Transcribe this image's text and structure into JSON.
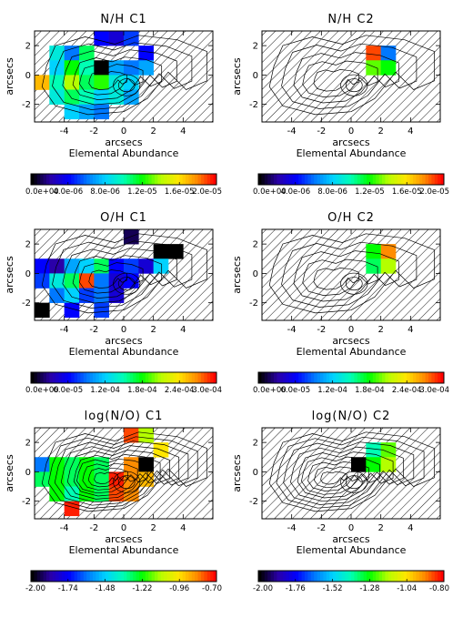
{
  "chart_data": {
    "type": "heatmap",
    "x_range": [
      -6,
      6
    ],
    "y_range": [
      -3.2,
      3.0
    ],
    "x_ticks": [
      -4,
      -2,
      0,
      2,
      4
    ],
    "y_ticks": [
      -2,
      0,
      2
    ],
    "xlabel": "arcsecs",
    "ylabel": "arcsecs",
    "sublabel": "Elemental Abundance",
    "grid": false,
    "colormap": [
      "#000000",
      "#2a00a8",
      "#0000ff",
      "#0078ff",
      "#00d2ff",
      "#00ffb4",
      "#00ff00",
      "#b4ff00",
      "#ffe600",
      "#ff8c00",
      "#ff0000"
    ],
    "no_data_fill": "diagonal hatching",
    "panels": [
      {
        "title": "N/H C1",
        "color_range": [
          0,
          2e-05
        ],
        "colorbar_ticks": [
          "0.0e+00",
          "4.0e-06",
          "8.0e-06",
          "1.2e-05",
          "1.6e-05",
          "2.0e-05"
        ],
        "pixels": [
          {
            "x": -4.5,
            "y": 1.5,
            "v": 0.45
          },
          {
            "x": -3.5,
            "y": 1.5,
            "v": 0.3
          },
          {
            "x": -2.5,
            "y": 1.5,
            "v": 0.55
          },
          {
            "x": -1.5,
            "y": 2.5,
            "v": 0.2
          },
          {
            "x": -0.5,
            "y": 2.5,
            "v": 0.15
          },
          {
            "x": 0.5,
            "y": 2.5,
            "v": 0.25
          },
          {
            "x": 1.5,
            "y": 1.5,
            "v": 0.2
          },
          {
            "x": 1.5,
            "y": 0.5,
            "v": 0.35
          },
          {
            "x": -4.5,
            "y": 0.5,
            "v": 0.4
          },
          {
            "x": -3.5,
            "y": 0.5,
            "v": 0.6
          },
          {
            "x": -2.5,
            "y": 0.5,
            "v": 0.5
          },
          {
            "x": -1.5,
            "y": 0.5,
            "v": 0.0
          },
          {
            "x": -0.5,
            "y": 0.5,
            "v": 0.35
          },
          {
            "x": 0.5,
            "y": 0.5,
            "v": 0.3
          },
          {
            "x": -5.5,
            "y": -0.5,
            "v": 0.85
          },
          {
            "x": -4.5,
            "y": -0.5,
            "v": 0.5
          },
          {
            "x": -3.5,
            "y": -0.5,
            "v": 0.7
          },
          {
            "x": -2.5,
            "y": -0.5,
            "v": 0.55
          },
          {
            "x": -1.5,
            "y": -0.5,
            "v": 0.62
          },
          {
            "x": -0.5,
            "y": -0.5,
            "v": 0.45
          },
          {
            "x": 0.5,
            "y": -0.5,
            "v": 0.4
          },
          {
            "x": -4.5,
            "y": -1.5,
            "v": 0.45
          },
          {
            "x": -3.5,
            "y": -1.5,
            "v": 0.55
          },
          {
            "x": -2.5,
            "y": -1.5,
            "v": 0.5
          },
          {
            "x": -1.5,
            "y": -1.5,
            "v": 0.4
          },
          {
            "x": -0.5,
            "y": -1.5,
            "v": 0.45
          },
          {
            "x": 0.5,
            "y": -1.5,
            "v": 0.35
          },
          {
            "x": -3.5,
            "y": -2.5,
            "v": 0.4
          },
          {
            "x": -2.5,
            "y": -2.5,
            "v": 0.35
          },
          {
            "x": -1.5,
            "y": -2.5,
            "v": 0.3
          }
        ],
        "contours": 6
      },
      {
        "title": "N/H C2",
        "color_range": [
          0,
          2e-05
        ],
        "colorbar_ticks": [
          "0.0e+00",
          "4.0e-06",
          "8.0e-06",
          "1.2e-05",
          "1.6e-05",
          "2.0e-05"
        ],
        "pixels": [
          {
            "x": 1.5,
            "y": 1.5,
            "v": 0.95
          },
          {
            "x": 2.5,
            "y": 1.5,
            "v": 0.3
          },
          {
            "x": 1.5,
            "y": 0.5,
            "v": 0.65
          },
          {
            "x": 2.5,
            "y": 0.5,
            "v": 0.6
          }
        ],
        "contours": 5
      },
      {
        "title": "O/H C1",
        "color_range": [
          0,
          0.0003
        ],
        "colorbar_ticks": [
          "0.0e+00",
          "6.0e-05",
          "1.2e-04",
          "1.8e-04",
          "2.4e-04",
          "3.0e-04"
        ],
        "pixels": [
          {
            "x": 0.5,
            "y": 2.5,
            "v": 0.05
          },
          {
            "x": 2.5,
            "y": 1.5,
            "v": 0.0
          },
          {
            "x": 3.5,
            "y": 1.5,
            "v": 0.0
          },
          {
            "x": -5.5,
            "y": 0.5,
            "v": 0.2
          },
          {
            "x": -4.5,
            "y": 0.5,
            "v": 0.1
          },
          {
            "x": -3.5,
            "y": 0.5,
            "v": 0.35
          },
          {
            "x": -2.5,
            "y": 0.5,
            "v": 0.4
          },
          {
            "x": -1.5,
            "y": 0.5,
            "v": 0.55
          },
          {
            "x": -0.5,
            "y": 0.5,
            "v": 0.2
          },
          {
            "x": 0.5,
            "y": 0.5,
            "v": 0.25
          },
          {
            "x": 1.5,
            "y": 0.5,
            "v": 0.15
          },
          {
            "x": 2.5,
            "y": 0.5,
            "v": 0.4
          },
          {
            "x": -5.5,
            "y": -0.5,
            "v": 0.25
          },
          {
            "x": -4.5,
            "y": -0.5,
            "v": 0.45
          },
          {
            "x": -3.5,
            "y": -0.5,
            "v": 0.55
          },
          {
            "x": -2.5,
            "y": -0.5,
            "v": 0.95
          },
          {
            "x": -1.5,
            "y": -0.5,
            "v": 0.3
          },
          {
            "x": -0.5,
            "y": -0.5,
            "v": 0.15
          },
          {
            "x": 0.5,
            "y": -0.5,
            "v": 0.2
          },
          {
            "x": -4.5,
            "y": -1.5,
            "v": 0.3
          },
          {
            "x": -3.5,
            "y": -1.5,
            "v": 0.4
          },
          {
            "x": -2.5,
            "y": -1.5,
            "v": 0.25
          },
          {
            "x": -1.5,
            "y": -1.5,
            "v": 0.3
          },
          {
            "x": -0.5,
            "y": -1.5,
            "v": 0.15
          },
          {
            "x": -5.5,
            "y": -2.5,
            "v": 0.0
          },
          {
            "x": -3.5,
            "y": -2.5,
            "v": 0.2
          },
          {
            "x": -1.5,
            "y": -2.5,
            "v": 0.25
          }
        ],
        "contours": 6
      },
      {
        "title": "O/H C2",
        "color_range": [
          0,
          0.0003
        ],
        "colorbar_ticks": [
          "0.0e+00",
          "6.0e-05",
          "1.2e-04",
          "1.8e-04",
          "2.4e-04",
          "3.0e-04"
        ],
        "pixels": [
          {
            "x": 1.5,
            "y": 1.5,
            "v": 0.6
          },
          {
            "x": 2.5,
            "y": 1.5,
            "v": 0.9
          },
          {
            "x": 1.5,
            "y": 0.5,
            "v": 0.55
          },
          {
            "x": 2.5,
            "y": 0.5,
            "v": 0.7
          }
        ],
        "contours": 5
      },
      {
        "title": "log(N/O) C1",
        "color_range": [
          -2.0,
          -0.7
        ],
        "colorbar_ticks": [
          "-2.00",
          "-1.74",
          "-1.48",
          "-1.22",
          "-0.96",
          "-0.70"
        ],
        "pixels": [
          {
            "x": 0.5,
            "y": 2.5,
            "v": 0.95
          },
          {
            "x": 1.5,
            "y": 2.5,
            "v": 0.7
          },
          {
            "x": 2.5,
            "y": 1.5,
            "v": 0.8
          },
          {
            "x": -5.5,
            "y": 0.5,
            "v": 0.3
          },
          {
            "x": -4.5,
            "y": 0.5,
            "v": 0.6
          },
          {
            "x": -3.5,
            "y": 0.5,
            "v": 0.55
          },
          {
            "x": -2.5,
            "y": 0.5,
            "v": 0.6
          },
          {
            "x": -1.5,
            "y": 0.5,
            "v": 0.55
          },
          {
            "x": 0.5,
            "y": 0.5,
            "v": 0.9
          },
          {
            "x": 1.5,
            "y": 0.5,
            "v": 0.0
          },
          {
            "x": -5.5,
            "y": -0.5,
            "v": 0.55
          },
          {
            "x": -4.5,
            "y": -0.5,
            "v": 0.6
          },
          {
            "x": -3.5,
            "y": -0.5,
            "v": 0.55
          },
          {
            "x": -2.5,
            "y": -0.5,
            "v": 0.6
          },
          {
            "x": -1.5,
            "y": -0.5,
            "v": 0.55
          },
          {
            "x": -0.5,
            "y": -0.5,
            "v": 0.98
          },
          {
            "x": 0.5,
            "y": -0.5,
            "v": 0.9
          },
          {
            "x": 1.5,
            "y": -0.5,
            "v": 0.85
          },
          {
            "x": -4.5,
            "y": -1.5,
            "v": 0.6
          },
          {
            "x": -3.5,
            "y": -1.5,
            "v": 0.5
          },
          {
            "x": -2.5,
            "y": -1.5,
            "v": 0.6
          },
          {
            "x": -1.5,
            "y": -1.5,
            "v": 0.55
          },
          {
            "x": -0.5,
            "y": -1.5,
            "v": 0.95
          },
          {
            "x": 0.5,
            "y": -1.5,
            "v": 0.9
          },
          {
            "x": -3.5,
            "y": -2.5,
            "v": 0.98
          }
        ],
        "contours": 10
      },
      {
        "title": "log(N/O) C2",
        "color_range": [
          -2.0,
          -0.8
        ],
        "colorbar_ticks": [
          "-2.00",
          "-1.76",
          "-1.52",
          "-1.28",
          "-1.04",
          "-0.80"
        ],
        "pixels": [
          {
            "x": 1.5,
            "y": 1.5,
            "v": 0.5
          },
          {
            "x": 2.5,
            "y": 1.5,
            "v": 0.65
          },
          {
            "x": 0.5,
            "y": 0.5,
            "v": 0.0
          },
          {
            "x": 1.5,
            "y": 0.5,
            "v": 0.6
          },
          {
            "x": 2.5,
            "y": 0.5,
            "v": 0.7
          }
        ],
        "contours": 9
      }
    ]
  }
}
